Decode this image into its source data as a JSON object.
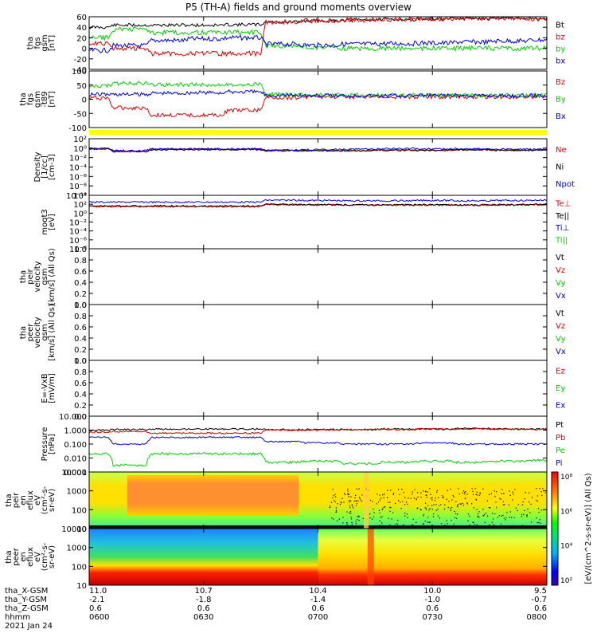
{
  "title": "P5 (TH-A) fields and ground moments overview",
  "date": "2021 Jan 24",
  "colors": {
    "black": "#000000",
    "red": "#e00000",
    "green": "#00d000",
    "blue": "#0000dd",
    "yellow": "#ffff00"
  },
  "panels": [
    {
      "id": "fgs-gsm",
      "ylabel": [
        "tha",
        "fgs",
        "gsm",
        "[nT]"
      ],
      "ticks": [
        "60",
        "40",
        "20",
        "0",
        "-20",
        "-40"
      ],
      "legend": [
        "Bt",
        "bz",
        "by",
        "bx"
      ],
      "legend_colors": [
        "#000000",
        "#e00000",
        "#00d000",
        "#0000dd"
      ]
    },
    {
      "id": "fgs-gsm-t89",
      "ylabel": [
        "tha",
        "fgs",
        "gsm",
        "-t89",
        "[nT]"
      ],
      "ticks": [
        "100",
        "50",
        "0",
        "-50",
        "-100"
      ],
      "legend": [
        "Bz",
        "By",
        "Bx"
      ],
      "legend_colors": [
        "#e00000",
        "#00d000",
        "#0000dd"
      ]
    },
    {
      "id": "density",
      "ylabel": [
        "Density",
        "[1/cc]",
        "[cm-3]"
      ],
      "ticks": [
        "10²",
        "10⁰",
        "10⁻²",
        "10⁻⁴",
        "10⁻⁶",
        "10⁻⁸",
        "10⁻¹⁰"
      ],
      "legend": [
        "Ne",
        "Ni",
        "Npot"
      ],
      "legend_colors": [
        "#e00000",
        "#000000",
        "#0000dd"
      ]
    },
    {
      "id": "temperature",
      "ylabel": [
        "moqt3",
        "[eV]"
      ],
      "ticks": [
        "10⁴",
        "10²",
        "10⁰",
        "10⁻²",
        "10⁻⁴",
        "10⁻⁶",
        "10⁻⁸"
      ],
      "legend": [
        "Te⊥",
        "Te||",
        "Ti⊥",
        "Ti||"
      ],
      "legend_colors": [
        "#e00000",
        "#000000",
        "#0000dd",
        "#00d000"
      ]
    },
    {
      "id": "peir-velocity",
      "ylabel": [
        "tha",
        "peir",
        "velocity",
        "gsm",
        "[km/s] (All Qs)"
      ],
      "ticks": [
        "1.0",
        "0.8",
        "0.6",
        "0.4",
        "0.2",
        "0.0"
      ],
      "legend": [
        "Vt",
        "Vz",
        "Vy",
        "Vx"
      ],
      "legend_colors": [
        "#000000",
        "#e00000",
        "#00d000",
        "#0000dd"
      ]
    },
    {
      "id": "peer-velocity",
      "ylabel": [
        "tha",
        "peer",
        "velocity",
        "gsm",
        "[km/s] (All Qs)"
      ],
      "ticks": [
        "1.0",
        "0.8",
        "0.6",
        "0.4",
        "0.2",
        "0.0"
      ],
      "legend": [
        "Vt",
        "Vz",
        "Vy",
        "Vx"
      ],
      "legend_colors": [
        "#000000",
        "#e00000",
        "#00d000",
        "#0000dd"
      ]
    },
    {
      "id": "efield",
      "ylabel": [
        "E=-VxB",
        "[mV/m]"
      ],
      "ticks": [
        "1.0",
        "0.8",
        "0.6",
        "0.4",
        "0.2",
        "0.0"
      ],
      "legend": [
        "Ez",
        "Ey",
        "Ex"
      ],
      "legend_colors": [
        "#e00000",
        "#00d000",
        "#0000dd"
      ]
    },
    {
      "id": "pressure",
      "ylabel": [
        "Pressure",
        "[nPa]"
      ],
      "ticks": [
        "10.000",
        "1.000",
        "0.100",
        "0.010",
        "0.001"
      ],
      "legend": [
        "Pt",
        "Pb",
        "Pe",
        "Pi"
      ],
      "legend_colors": [
        "#000000",
        "#e00000",
        "#00d000",
        "#0000dd"
      ]
    },
    {
      "id": "peir-spec",
      "ylabel": [
        "tha",
        "peir",
        "en",
        "eflux",
        "eV",
        "(cm²-s-",
        "sr-eV)"
      ],
      "ticks": [
        "10000",
        "1000",
        "100",
        "10"
      ]
    },
    {
      "id": "peer-spec",
      "ylabel": [
        "tha",
        "peer",
        "en",
        "eflux",
        "eV",
        "(cm²-s-",
        "sr-eV)"
      ],
      "ticks": [
        "10000",
        "1000",
        "100",
        "10"
      ]
    }
  ],
  "colorbar": {
    "label": "[eV/(cm^2-s-sr-eV)] (All Qs)",
    "ticks": [
      "10⁸",
      "10⁶",
      "10⁴",
      "10²"
    ]
  },
  "xaxis": {
    "row_labels": [
      "tha_X-GSM",
      "tha_Y-GSM",
      "tha_Z-GSM",
      "hhmm"
    ],
    "columns": [
      {
        "x": "11.0",
        "y": "-2.1",
        "z": "0.6",
        "t": "0600"
      },
      {
        "x": "10.7",
        "y": "-1.8",
        "z": "0.6",
        "t": "0630"
      },
      {
        "x": "10.4",
        "y": "-1.4",
        "z": "0.6",
        "t": "0700"
      },
      {
        "x": "10.0",
        "y": "-1.0",
        "z": "0.6",
        "t": "0730"
      },
      {
        "x": "9.5",
        "y": "-0.7",
        "z": "0.6",
        "t": "0800"
      }
    ]
  },
  "chart_data": {
    "type": "line",
    "title": "P5 (TH-A) fields and ground moments overview",
    "x_range": [
      "0600",
      "0800"
    ],
    "x_unit": "hhmm UT, 2021 Jan 24",
    "panels": [
      {
        "name": "tha fgs gsm [nT]",
        "ylim": [
          -40,
          60
        ],
        "x": [
          "0600",
          "0610",
          "0620",
          "0630",
          "0640",
          "0650",
          "0700",
          "0710",
          "0720",
          "0730",
          "0740",
          "0750",
          "0800"
        ],
        "series": [
          {
            "name": "Bt",
            "color": "#000000",
            "values": [
              40,
              44,
              44,
              44,
              45,
              50,
              52,
              54,
              55,
              56,
              57,
              58,
              56
            ]
          },
          {
            "name": "bz",
            "color": "#e00000",
            "values": [
              10,
              0,
              -10,
              -10,
              -10,
              50,
              52,
              54,
              55,
              56,
              57,
              58,
              56
            ]
          },
          {
            "name": "by",
            "color": "#00d000",
            "values": [
              20,
              36,
              30,
              30,
              30,
              5,
              2,
              0,
              0,
              0,
              0,
              0,
              0
            ]
          },
          {
            "name": "bx",
            "color": "#0000dd",
            "values": [
              -4,
              5,
              15,
              18,
              20,
              8,
              6,
              8,
              9,
              10,
              12,
              14,
              16
            ]
          }
        ]
      },
      {
        "name": "tha fgs gsm -t89 [nT]",
        "ylim": [
          -130,
          100
        ],
        "x": [
          "0600",
          "0610",
          "0620",
          "0630",
          "0640",
          "0650",
          "0700",
          "0710",
          "0720",
          "0730",
          "0740",
          "0750",
          "0800"
        ],
        "series": [
          {
            "name": "Bz",
            "color": "#e00000",
            "values": [
              -10,
              -50,
              -80,
              -80,
              -60,
              -8,
              -5,
              -5,
              -5,
              -5,
              -5,
              -5,
              -5
            ]
          },
          {
            "name": "By",
            "color": "#00d000",
            "values": [
              40,
              50,
              45,
              45,
              45,
              5,
              2,
              1,
              1,
              1,
              1,
              1,
              1
            ]
          },
          {
            "name": "Bx",
            "color": "#0000dd",
            "values": [
              5,
              5,
              10,
              12,
              15,
              2,
              0,
              0,
              0,
              0,
              0,
              0,
              0
            ]
          }
        ]
      },
      {
        "name": "Density [1/cc] [cm-3]",
        "ylim": [
          "1e-10",
          "1e2"
        ],
        "series": [
          {
            "name": "Ne",
            "color": "#e00000",
            "values": [
              0.8,
              0.2,
              0.6,
              0.6,
              0.6,
              0.3,
              0.3,
              0.3,
              0.4,
              0.4,
              0.5,
              0.4,
              0.4
            ]
          },
          {
            "name": "Ni",
            "color": "#000000",
            "values": [
              0.7,
              0.2,
              0.5,
              0.5,
              0.5,
              0.3,
              0.3,
              0.3,
              0.35,
              0.35,
              0.45,
              0.35,
              0.35
            ]
          },
          {
            "name": "Npot",
            "color": "#0000dd",
            "values": [
              1.0,
              0.3,
              0.7,
              0.7,
              0.7,
              0.4,
              0.5,
              0.6,
              0.8,
              0.7,
              0.8,
              0.6,
              0.6
            ]
          }
        ]
      },
      {
        "name": "moqt3 [eV]",
        "ylim": [
          "1e-8",
          "1e4"
        ],
        "series": [
          {
            "name": "Te⊥",
            "color": "#e00000",
            "values": [
              30,
              30,
              30,
              30,
              30,
              80,
              70,
              60,
              60,
              70,
              60,
              70,
              80
            ]
          },
          {
            "name": "Te||",
            "color": "#000000",
            "values": [
              40,
              40,
              40,
              40,
              40,
              90,
              80,
              70,
              70,
              80,
              70,
              80,
              90
            ]
          },
          {
            "name": "Ti⊥",
            "color": "#0000dd",
            "values": [
              300,
              300,
              300,
              300,
              300,
              800,
              700,
              600,
              600,
              700,
              600,
              700,
              800
            ]
          }
        ]
      },
      {
        "name": "Pressure [nPa]",
        "ylim": [
          0.001,
          10
        ],
        "series": [
          {
            "name": "Pt",
            "color": "#000000",
            "values": [
              1.0,
              1.1,
              1.2,
              1.2,
              1.2,
              1.1,
              1.1,
              1.1,
              1.2,
              1.2,
              1.3,
              1.2,
              1.2
            ]
          },
          {
            "name": "Pb",
            "color": "#e00000",
            "values": [
              0.7,
              0.8,
              0.6,
              0.6,
              0.6,
              1.0,
              1.0,
              1.1,
              1.1,
              1.2,
              1.2,
              1.2,
              1.1
            ]
          },
          {
            "name": "Pe",
            "color": "#00d000",
            "values": [
              0.02,
              0.003,
              0.02,
              0.02,
              0.02,
              0.005,
              0.006,
              0.004,
              0.005,
              0.006,
              0.005,
              0.006,
              0.007
            ]
          },
          {
            "name": "Pi",
            "color": "#0000dd",
            "values": [
              0.3,
              0.1,
              0.3,
              0.3,
              0.3,
              0.15,
              0.12,
              0.1,
              0.1,
              0.12,
              0.1,
              0.1,
              0.1
            ]
          }
        ]
      }
    ]
  }
}
